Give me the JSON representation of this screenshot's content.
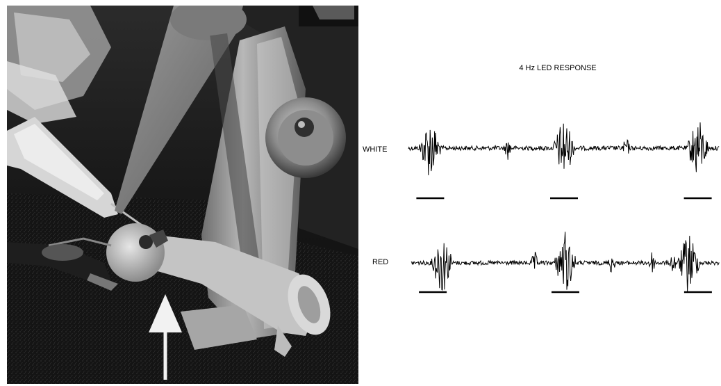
{
  "photo": {
    "subject": "dissection-rig-photo",
    "arrow_icon": "arrow-up-icon"
  },
  "chart_data": {
    "type": "line",
    "title": "4 Hz LED RESPONSE",
    "xlabel": "",
    "ylabel": "",
    "grid": false,
    "legend": "none",
    "series": [
      {
        "name": "WHITE",
        "color": "#000000",
        "bursts": [
          0.07,
          0.5,
          0.93
        ],
        "stimulus_bars": [
          0.07,
          0.5,
          0.93
        ]
      },
      {
        "name": "RED",
        "color": "#000000",
        "bursts": [
          0.1,
          0.5,
          0.9
        ],
        "stimulus_bars": [
          0.07,
          0.5,
          0.93
        ]
      }
    ]
  }
}
